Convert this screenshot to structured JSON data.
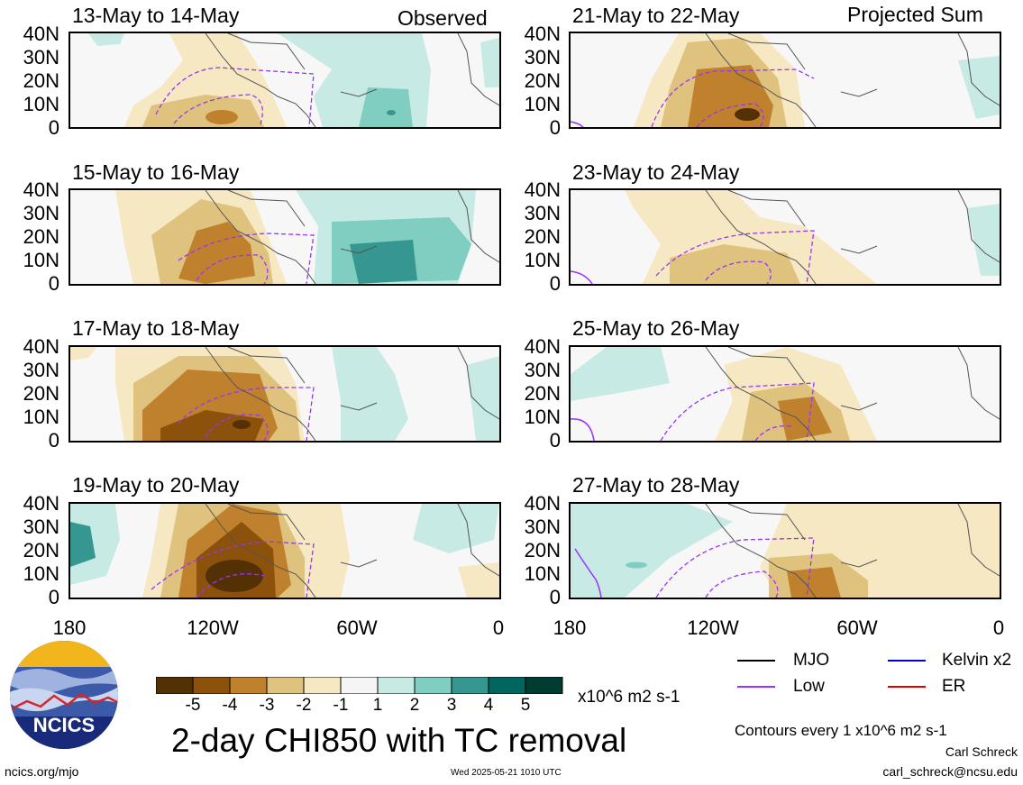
{
  "labels": {
    "observed": "Observed",
    "projected": "Projected Sum",
    "lat_ticks": [
      "40N",
      "30N",
      "20N",
      "10N",
      "0"
    ],
    "lon_ticks": [
      "180",
      "120W",
      "60W",
      "0"
    ]
  },
  "panels": [
    {
      "title": "13-May to 14-May"
    },
    {
      "title": "15-May to 16-May"
    },
    {
      "title": "17-May to 18-May"
    },
    {
      "title": "19-May to 20-May"
    },
    {
      "title": "21-May to 22-May"
    },
    {
      "title": "23-May to 24-May"
    },
    {
      "title": "25-May to 26-May"
    },
    {
      "title": "27-May to 28-May"
    }
  ],
  "colorbar": {
    "labels": [
      "-5",
      "-4",
      "-3",
      "-2",
      "-1",
      "1",
      "2",
      "3",
      "4",
      "5"
    ],
    "colors": [
      "#543005",
      "#8c510a",
      "#bf812d",
      "#dfc27d",
      "#f6e8c3",
      "#f5f5f5",
      "#c7eae5",
      "#80cdc1",
      "#35978f",
      "#01665e",
      "#003c30"
    ],
    "units": "x10^6 m2 s-1"
  },
  "title": "2-day CHI850 with TC removal",
  "legend": [
    {
      "label": "MJO",
      "color": "#000000"
    },
    {
      "label": "Kelvin x2",
      "color": "#0000cc"
    },
    {
      "label": "Low",
      "color": "#9933ff"
    },
    {
      "label": "ER",
      "color": "#dd0000"
    }
  ],
  "contour_note": "Contours every 1 x10^6 m2 s-1",
  "author": "Carl Schreck",
  "email": "carl_schreck@ncsu.edu",
  "website": "ncics.org/mjo",
  "timestamp": "Wed 2025-05-21 1010 UTC",
  "logo": {
    "text": "NCICS"
  }
}
